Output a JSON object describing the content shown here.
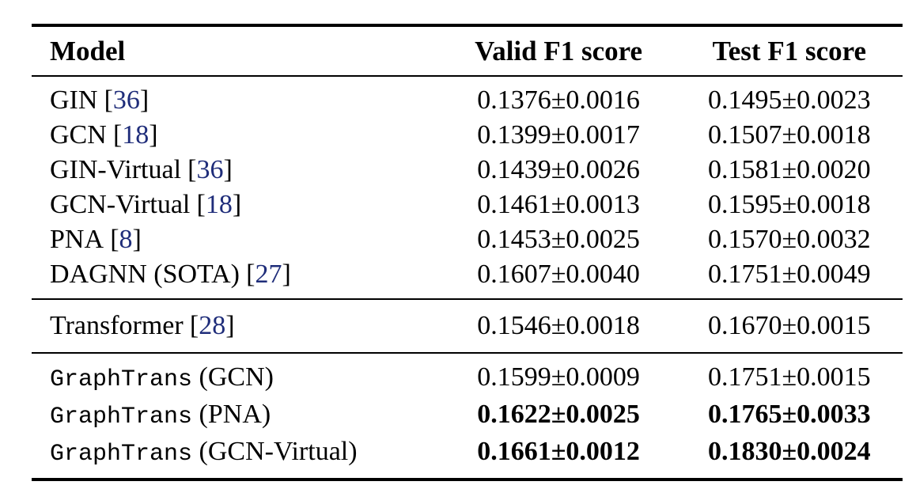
{
  "punct": {
    "lbracket": "[",
    "rbracket": "]"
  },
  "colors": {
    "text": "#000000",
    "background": "#ffffff",
    "citation_link": "#1f2d7a",
    "rule": "#000000"
  },
  "table": {
    "columns": [
      "Model",
      "Valid F1 score",
      "Test F1 score"
    ],
    "groups": [
      {
        "rows": [
          {
            "name": "GIN",
            "cite": "36",
            "valid": "0.1376±0.0016",
            "test": "0.1495±0.0023",
            "bold": false
          },
          {
            "name": "GCN",
            "cite": "18",
            "valid": "0.1399±0.0017",
            "test": "0.1507±0.0018",
            "bold": false
          },
          {
            "name": "GIN-Virtual",
            "cite": "36",
            "valid": "0.1439±0.0026",
            "test": "0.1581±0.0020",
            "bold": false
          },
          {
            "name": "GCN-Virtual",
            "cite": "18",
            "valid": "0.1461±0.0013",
            "test": "0.1595±0.0018",
            "bold": false
          },
          {
            "name": "PNA",
            "cite": "8",
            "valid": "0.1453±0.0025",
            "test": "0.1570±0.0032",
            "bold": false
          },
          {
            "name": "DAGNN (SOTA)",
            "cite": "27",
            "valid": "0.1607±0.0040",
            "test": "0.1751±0.0049",
            "bold": false
          }
        ]
      },
      {
        "rows": [
          {
            "name": "Transformer",
            "cite": "28",
            "valid": "0.1546±0.0018",
            "test": "0.1670±0.0015",
            "bold": false
          }
        ]
      },
      {
        "rows": [
          {
            "name_mono": "GraphTrans",
            "name_suffix": " (GCN)",
            "valid": "0.1599±0.0009",
            "test": "0.1751±0.0015",
            "bold": false
          },
          {
            "name_mono": "GraphTrans",
            "name_suffix": " (PNA)",
            "valid": "0.1622±0.0025",
            "test": "0.1765±0.0033",
            "bold": true
          },
          {
            "name_mono": "GraphTrans",
            "name_suffix": " (GCN-Virtual)",
            "valid": "0.1661±0.0012",
            "test": "0.1830±0.0024",
            "bold": true
          }
        ]
      }
    ]
  }
}
